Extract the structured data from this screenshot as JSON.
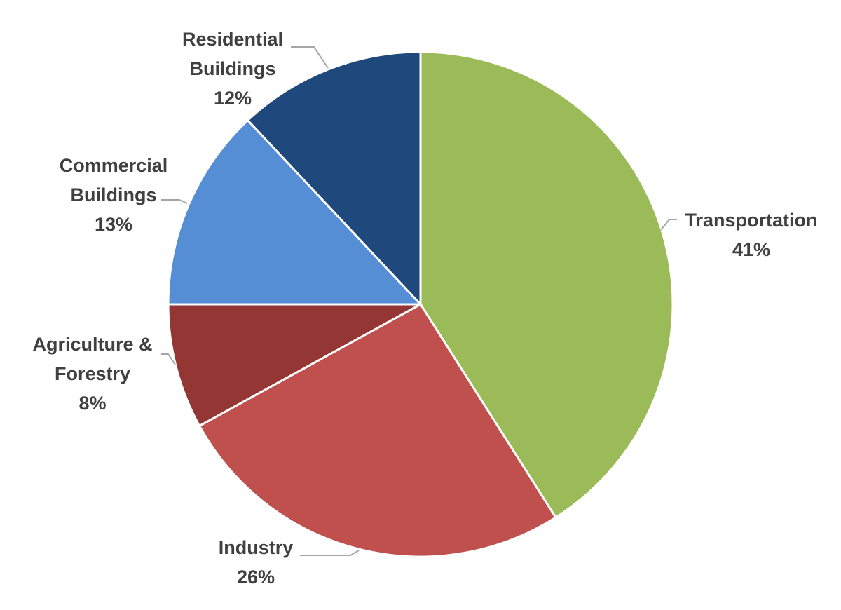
{
  "chart_data": {
    "type": "pie",
    "title": "",
    "start_angle_deg": 0,
    "direction": "clockwise",
    "legend": "none",
    "slices": [
      {
        "name": "Transportation",
        "label_lines": [
          "Transportation"
        ],
        "value": 41,
        "value_label": "41%",
        "color": "#9bbb59"
      },
      {
        "name": "Industry",
        "label_lines": [
          "Industry"
        ],
        "value": 26,
        "value_label": "26%",
        "color": "#c0504d"
      },
      {
        "name": "Agriculture & Forestry",
        "label_lines": [
          "Agriculture &",
          "Forestry"
        ],
        "value": 8,
        "value_label": "8%",
        "color": "#943634"
      },
      {
        "name": "Commercial Buildings",
        "label_lines": [
          "Commercial",
          "Buildings"
        ],
        "value": 13,
        "value_label": "13%",
        "color": "#558ed5"
      },
      {
        "name": "Residential Buildings",
        "label_lines": [
          "Residential",
          "Buildings"
        ],
        "value": 12,
        "value_label": "12%",
        "color": "#1f497d"
      }
    ]
  }
}
